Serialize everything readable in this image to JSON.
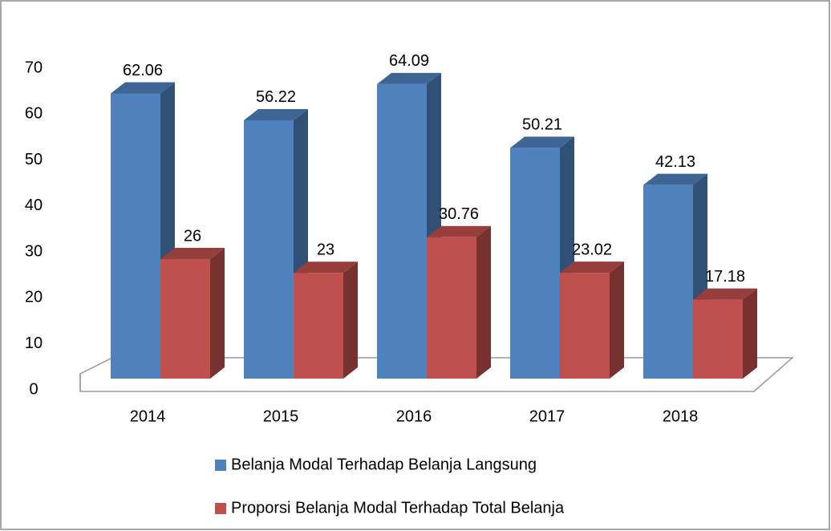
{
  "chart_data": {
    "type": "bar3d",
    "categories": [
      "2014",
      "2015",
      "2016",
      "2017",
      "2018"
    ],
    "series": [
      {
        "name": "Belanja Modal Terhadap Belanja Langsung",
        "color": "#4f81bd",
        "values": [
          62.06,
          56.22,
          64.09,
          50.21,
          42.13
        ]
      },
      {
        "name": "Proporsi Belanja Modal Terhadap Total Belanja",
        "color": "#c0504d",
        "values": [
          26,
          23,
          30.76,
          23.02,
          17.18
        ]
      }
    ],
    "ylim": [
      0,
      70
    ],
    "yticks": [
      0,
      10,
      20,
      30,
      40,
      50,
      60,
      70
    ],
    "legend": "bottom"
  }
}
